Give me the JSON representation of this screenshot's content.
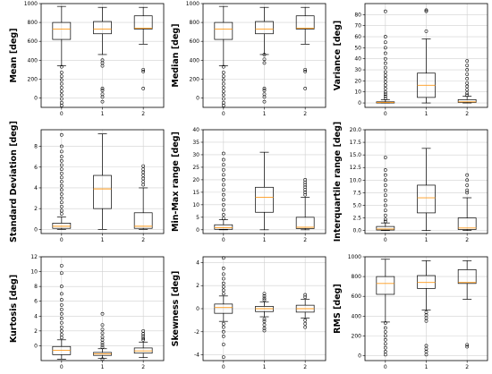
{
  "colors": {
    "box": "#000000",
    "median": "#ff9a1a",
    "grid": "#d0d0d0",
    "frame": "#000000"
  },
  "chart_data": [
    {
      "type": "box",
      "ylabel": "Mean [deg]",
      "ylim": [
        -100,
        1000
      ],
      "yticks": [
        0,
        200,
        400,
        600,
        800,
        1000
      ],
      "categories": [
        "0",
        "1",
        "2"
      ],
      "boxes": [
        {
          "whislo": 340,
          "q1": 620,
          "med": 730,
          "q3": 800,
          "whishi": 970,
          "fliers": [
            330,
            270,
            230,
            190,
            150,
            110,
            70,
            30,
            -10,
            -50,
            -80
          ]
        },
        {
          "whislo": 460,
          "q1": 680,
          "med": 730,
          "q3": 810,
          "whishi": 960,
          "fliers": [
            400,
            370,
            340,
            100,
            80,
            40,
            10,
            -40
          ]
        },
        {
          "whislo": 570,
          "q1": 730,
          "med": 740,
          "q3": 870,
          "whishi": 960,
          "fliers": [
            300,
            280,
            100
          ]
        }
      ]
    },
    {
      "type": "box",
      "ylabel": "Median [deg]",
      "ylim": [
        -100,
        1000
      ],
      "yticks": [
        0,
        200,
        400,
        600,
        800,
        1000
      ],
      "categories": [
        "0",
        "1",
        "2"
      ],
      "boxes": [
        {
          "whislo": 340,
          "q1": 620,
          "med": 730,
          "q3": 800,
          "whishi": 970,
          "fliers": [
            330,
            270,
            230,
            190,
            150,
            110,
            70,
            30,
            -10,
            -50,
            -80
          ]
        },
        {
          "whislo": 460,
          "q1": 680,
          "med": 730,
          "q3": 810,
          "whishi": 960,
          "fliers": [
            460,
            410,
            370,
            100,
            80,
            40,
            10,
            -40
          ]
        },
        {
          "whislo": 570,
          "q1": 730,
          "med": 740,
          "q3": 870,
          "whishi": 960,
          "fliers": [
            300,
            280,
            100
          ]
        }
      ]
    },
    {
      "type": "box",
      "ylabel": "Variance [deg]",
      "ylim": [
        -4,
        90
      ],
      "yticks": [
        0,
        10,
        20,
        30,
        40,
        50,
        60,
        70,
        80
      ],
      "categories": [
        "0",
        "1",
        "2"
      ],
      "boxes": [
        {
          "whislo": 0,
          "q1": 0,
          "med": 0.5,
          "q3": 1,
          "whishi": 3,
          "fliers": [
            83,
            60,
            55,
            50,
            45,
            40,
            36,
            32,
            28,
            25,
            22,
            19,
            16,
            13,
            10,
            8,
            6,
            4
          ]
        },
        {
          "whislo": 0,
          "q1": 5,
          "med": 16,
          "q3": 27,
          "whishi": 58,
          "fliers": [
            84,
            83,
            65
          ]
        },
        {
          "whislo": 0,
          "q1": 0.5,
          "med": 1,
          "q3": 3,
          "whishi": 6,
          "fliers": [
            38,
            34,
            30,
            26,
            22,
            18,
            15,
            12,
            9,
            7
          ]
        }
      ]
    },
    {
      "type": "box",
      "ylabel": "Standard Deviation [deg]",
      "ylim": [
        -0.4,
        9.6
      ],
      "yticks": [
        0,
        2,
        4,
        6,
        8
      ],
      "categories": [
        "0",
        "1",
        "2"
      ],
      "boxes": [
        {
          "whislo": 0,
          "q1": 0.1,
          "med": 0.3,
          "q3": 0.6,
          "whishi": 1.2,
          "fliers": [
            9.1,
            8.0,
            7.5,
            7.0,
            6.6,
            6.2,
            5.8,
            5.4,
            5.0,
            4.6,
            4.2,
            3.8,
            3.4,
            3.0,
            2.6,
            2.2,
            1.8,
            1.5
          ]
        },
        {
          "whislo": 0,
          "q1": 2.0,
          "med": 3.9,
          "q3": 5.2,
          "whishi": 9.2,
          "fliers": []
        },
        {
          "whislo": 0,
          "q1": 0.1,
          "med": 0.3,
          "q3": 1.6,
          "whishi": 4.0,
          "fliers": [
            6.1,
            5.8,
            5.5,
            5.2,
            4.9,
            4.6,
            4.3
          ]
        }
      ]
    },
    {
      "type": "box",
      "ylabel": "Min-Max range [deg]",
      "ylim": [
        -1.5,
        40
      ],
      "yticks": [
        0,
        5,
        10,
        15,
        20,
        25,
        30,
        35,
        40
      ],
      "categories": [
        "0",
        "1",
        "2"
      ],
      "boxes": [
        {
          "whislo": 0,
          "q1": 0.2,
          "med": 0.8,
          "q3": 2,
          "whishi": 4,
          "fliers": [
            30.5,
            28,
            26,
            24,
            22,
            20,
            18,
            16,
            14,
            12,
            10,
            8,
            6,
            4.5
          ]
        },
        {
          "whislo": 0,
          "q1": 7,
          "med": 13,
          "q3": 17,
          "whishi": 31,
          "fliers": []
        },
        {
          "whislo": 0,
          "q1": 0.5,
          "med": 1,
          "q3": 5,
          "whishi": 13,
          "fliers": [
            20,
            19,
            18,
            17,
            16,
            15,
            14
          ]
        }
      ]
    },
    {
      "type": "box",
      "ylabel": "Interquartile range [deg]",
      "ylim": [
        -0.6,
        20
      ],
      "yticks": [
        0,
        2.5,
        5,
        7.5,
        10,
        12.5,
        15,
        17.5,
        20
      ],
      "ytickLabels": [
        "0.0",
        "2.5",
        "5.0",
        "7.5",
        "10.0",
        "12.5",
        "15.0",
        "17.5",
        "20.0"
      ],
      "categories": [
        "0",
        "1",
        "2"
      ],
      "boxes": [
        {
          "whislo": 0,
          "q1": 0.1,
          "med": 0.3,
          "q3": 0.8,
          "whishi": 1.5,
          "fliers": [
            14.5,
            12,
            11,
            10,
            9,
            8,
            7,
            6,
            5,
            4,
            3,
            2.2,
            1.8
          ]
        },
        {
          "whislo": 0,
          "q1": 3.5,
          "med": 6.5,
          "q3": 9,
          "whishi": 16.3,
          "fliers": []
        },
        {
          "whislo": 0,
          "q1": 0.2,
          "med": 0.5,
          "q3": 2.5,
          "whishi": 6.5,
          "fliers": [
            11,
            10,
            9,
            8,
            7.5
          ]
        }
      ]
    },
    {
      "type": "box",
      "ylabel": "Kurtosis [deg]",
      "ylim": [
        -2,
        12
      ],
      "yticks": [
        0,
        2,
        4,
        6,
        8,
        10,
        12
      ],
      "categories": [
        "0",
        "1",
        "2"
      ],
      "boxes": [
        {
          "whislo": -1.8,
          "q1": -1.2,
          "med": -0.6,
          "q3": -0.1,
          "whishi": 0.8,
          "fliers": [
            10.8,
            9.8,
            8.0,
            7.0,
            6.2,
            5.5,
            4.9,
            4.3,
            3.7,
            3.1,
            2.5,
            2.0,
            1.5,
            1.1
          ]
        },
        {
          "whislo": -1.7,
          "q1": -1.3,
          "med": -1.1,
          "q3": -0.9,
          "whishi": -0.4,
          "fliers": [
            4.3,
            2.8,
            2.2,
            1.7,
            1.2,
            0.8,
            0.4,
            0.1,
            -0.2,
            -1.8
          ]
        },
        {
          "whislo": -1.6,
          "q1": -1.0,
          "med": -0.7,
          "q3": -0.3,
          "whishi": 0.5,
          "fliers": [
            2.0,
            1.6,
            1.3,
            1.0,
            0.8
          ]
        }
      ]
    },
    {
      "type": "box",
      "ylabel": "Skewness [deg]",
      "ylim": [
        -4.5,
        4.5
      ],
      "yticks": [
        -4,
        -2,
        0,
        2,
        4
      ],
      "categories": [
        "0",
        "1",
        "2"
      ],
      "boxes": [
        {
          "whislo": -1.1,
          "q1": -0.4,
          "med": 0.1,
          "q3": 0.4,
          "whishi": 1.1,
          "fliers": [
            4.4,
            3.5,
            3.0,
            2.6,
            2.2,
            1.9,
            1.6,
            1.3,
            -1.3,
            -1.6,
            -2.0,
            -2.4,
            -3.1,
            -4.2
          ]
        },
        {
          "whislo": -0.7,
          "q1": -0.25,
          "med": 0.0,
          "q3": 0.2,
          "whishi": 0.6,
          "fliers": [
            1.3,
            1.1,
            0.9,
            0.75,
            -0.9,
            -1.1,
            -1.4,
            -1.7,
            -1.9
          ]
        },
        {
          "whislo": -0.8,
          "q1": -0.3,
          "med": 0.0,
          "q3": 0.3,
          "whishi": 0.8,
          "fliers": [
            1.2,
            1.0,
            -1.0,
            -1.3,
            -1.6
          ]
        }
      ]
    },
    {
      "type": "box",
      "ylabel": "RMS [deg]",
      "ylim": [
        -50,
        1000
      ],
      "yticks": [
        0,
        200,
        400,
        600,
        800,
        1000
      ],
      "categories": [
        "0",
        "1",
        "2"
      ],
      "boxes": [
        {
          "whislo": 340,
          "q1": 620,
          "med": 730,
          "q3": 800,
          "whishi": 975,
          "fliers": [
            330,
            280,
            240,
            200,
            160,
            120,
            80,
            40,
            10
          ]
        },
        {
          "whislo": 460,
          "q1": 680,
          "med": 740,
          "q3": 810,
          "whishi": 960,
          "fliers": [
            440,
            410,
            380,
            350,
            100,
            70,
            40,
            10
          ]
        },
        {
          "whislo": 570,
          "q1": 730,
          "med": 740,
          "q3": 870,
          "whishi": 960,
          "fliers": [
            110,
            90
          ]
        }
      ]
    }
  ]
}
